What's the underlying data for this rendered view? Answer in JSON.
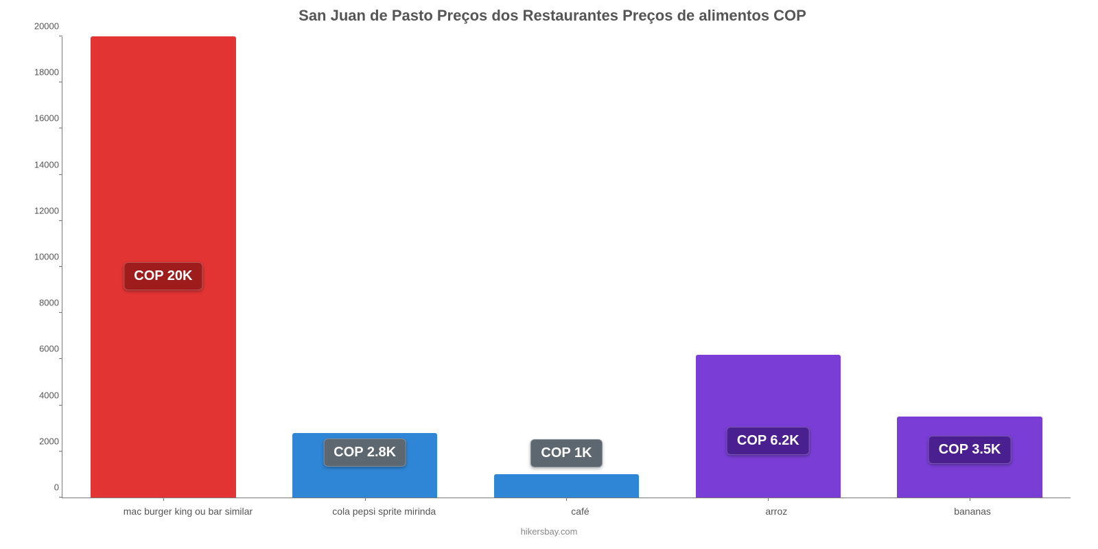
{
  "chart": {
    "type": "bar",
    "title": "San Juan de Pasto Preços dos Restaurantes Preços de alimentos COP",
    "title_fontsize": 22,
    "title_color": "#555555",
    "background_color": "#ffffff",
    "axis_color": "#777777",
    "ylim": [
      0,
      20000
    ],
    "y_ticks": [
      0,
      2000,
      4000,
      6000,
      8000,
      10000,
      12000,
      14000,
      16000,
      18000,
      20000
    ],
    "categories": [
      "mac burger king ou bar similar",
      "cola pepsi sprite mirinda",
      "café",
      "arroz",
      "bananas"
    ],
    "values": [
      20000,
      2800,
      1000,
      6200,
      3500
    ],
    "value_labels": [
      "COP 20K",
      "COP 2.8K",
      "COP 1K",
      "COP 6.2K",
      "COP 3.5K"
    ],
    "bar_colors": [
      "#e33434",
      "#2f86d6",
      "#2f86d6",
      "#7a3ed6",
      "#7a3ed6"
    ],
    "label_box_colors": [
      "#9e1c1c",
      "#5c6770",
      "#5c6770",
      "#4a1f90",
      "#4a1f90"
    ],
    "label_font_color": "#ffffff",
    "label_fontsize": 20,
    "x_label_fontsize": 14,
    "x_label_color": "#555555",
    "y_label_fontsize": 13,
    "y_label_color": "#555555",
    "bar_width_ratio": 0.72,
    "attribution": "hikersbay.com",
    "attribution_color": "#888888",
    "attribution_fontsize": 13,
    "label_offsets_pct": [
      45,
      48,
      90,
      30,
      42
    ]
  }
}
